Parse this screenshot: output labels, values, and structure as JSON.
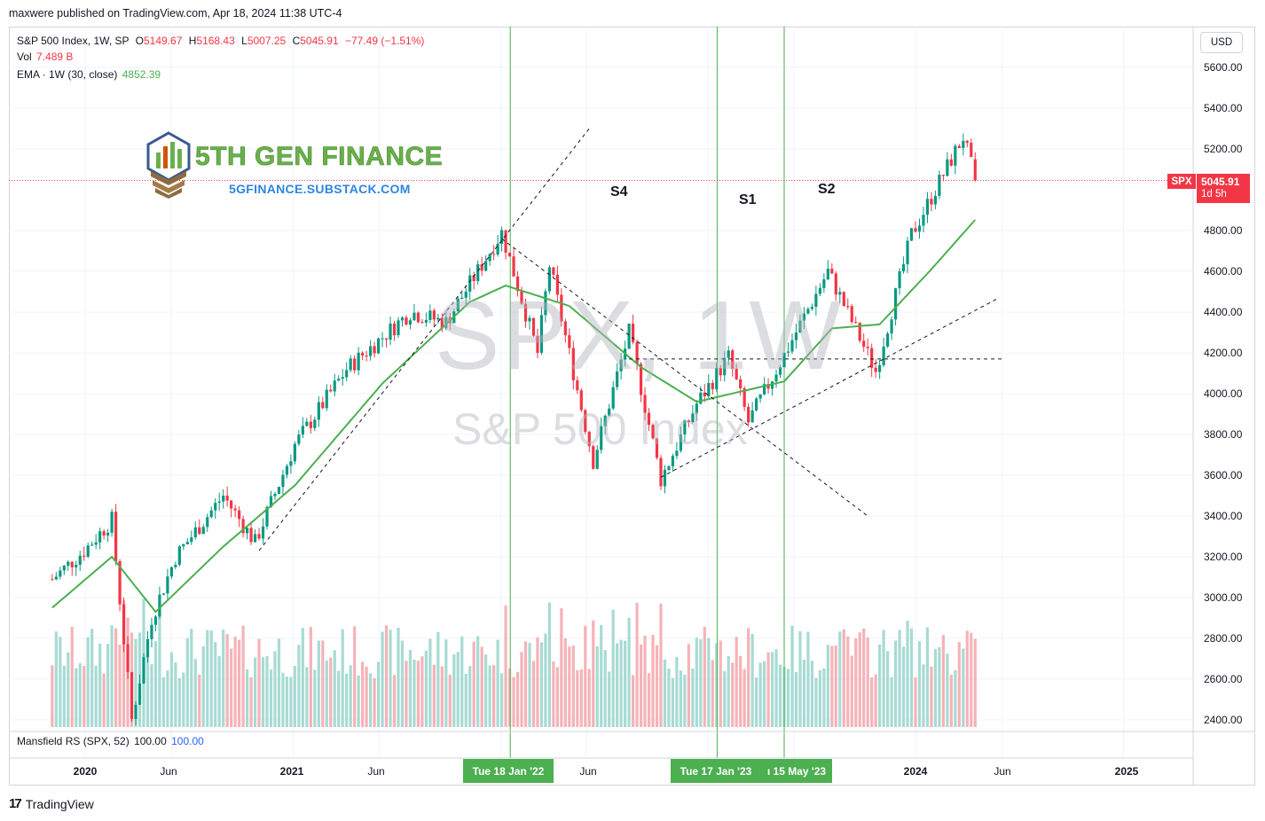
{
  "header": {
    "published": "maxwere published on TradingView.com, Apr 18, 2024 11:38 UTC-4"
  },
  "legend": {
    "symbol": "S&P 500 Index, 1W, SP",
    "open_label": "O",
    "open": "5149.67",
    "high_label": "H",
    "high": "5168.43",
    "low_label": "L",
    "low": "5007.25",
    "close_label": "C",
    "close": "5045.91",
    "change": "−77.49 (−1.51%)",
    "vol_label": "Vol",
    "vol": "7.489 B",
    "ema_label": "EMA · 1W (30, close)",
    "ema": "4852.39",
    "rs_label": "Mansfield RS (SPX, 52)",
    "rs_a": "100.00",
    "rs_b": "100.00"
  },
  "currency": "USD",
  "price_tag": {
    "symbol": "SPX",
    "price": "5045.91",
    "countdown": "1d 5h"
  },
  "watermark": {
    "ticker": "SPX, 1W",
    "name": "S&P 500 Index"
  },
  "annotations": [
    "S4",
    "S1",
    "S2"
  ],
  "logo": {
    "title": "5TH GEN FINANCE",
    "url": "5GFINANCE.SUBSTACK.COM"
  },
  "x_axis": {
    "labels": [
      "2020",
      "Jun",
      "2021",
      "Jun",
      "Jun",
      "2024",
      "Jun",
      "2025"
    ],
    "highlighted": [
      "Tue 18 Jan '22",
      "Tue 17 Jan '23",
      "ı 15 May '23"
    ]
  },
  "branding": "TradingView",
  "chart_data": {
    "type": "candlestick",
    "interval": "1W",
    "y_axis": {
      "ticks": [
        2400,
        2600,
        2800,
        3000,
        3200,
        3400,
        3600,
        3800,
        4000,
        4200,
        4400,
        4600,
        4800,
        5000,
        5200,
        5400,
        5600
      ],
      "range": [
        2380,
        5660
      ]
    },
    "price_path": [
      [
        "2019-11-04",
        3090
      ],
      [
        "2019-12-30",
        3230
      ],
      [
        "2020-02-17",
        3380
      ],
      [
        "2020-03-23",
        2400
      ],
      [
        "2020-04-27",
        2900
      ],
      [
        "2020-06-08",
        3200
      ],
      [
        "2020-08-31",
        3500
      ],
      [
        "2020-10-26",
        3270
      ],
      [
        "2021-01-04",
        3750
      ],
      [
        "2021-04-05",
        4120
      ],
      [
        "2021-07-26",
        4400
      ],
      [
        "2021-09-27",
        4350
      ],
      [
        "2022-01-03",
        4790
      ],
      [
        "2022-03-07",
        4200
      ],
      [
        "2022-03-28",
        4630
      ],
      [
        "2022-06-13",
        3670
      ],
      [
        "2022-08-15",
        4300
      ],
      [
        "2022-10-10",
        3580
      ],
      [
        "2022-12-12",
        3950
      ],
      [
        "2023-02-06",
        4180
      ],
      [
        "2023-03-13",
        3860
      ],
      [
        "2023-05-15",
        4190
      ],
      [
        "2023-07-31",
        4600
      ],
      [
        "2023-10-23",
        4110
      ],
      [
        "2023-12-25",
        4780
      ],
      [
        "2024-03-25",
        5260
      ],
      [
        "2024-04-15",
        5045.91
      ]
    ],
    "ema30_path": [
      [
        "2019-11-04",
        2950
      ],
      [
        "2020-02-17",
        3200
      ],
      [
        "2020-05-04",
        2930
      ],
      [
        "2020-08-31",
        3250
      ],
      [
        "2021-01-04",
        3550
      ],
      [
        "2021-06-07",
        4050
      ],
      [
        "2021-11-08",
        4450
      ],
      [
        "2022-01-10",
        4530
      ],
      [
        "2022-05-02",
        4430
      ],
      [
        "2022-09-05",
        4130
      ],
      [
        "2022-12-12",
        3960
      ],
      [
        "2023-05-15",
        4060
      ],
      [
        "2023-08-07",
        4320
      ],
      [
        "2023-10-30",
        4340
      ],
      [
        "2024-01-29",
        4610
      ],
      [
        "2024-04-15",
        4852.39
      ]
    ],
    "volume_bars": 235,
    "vertical_markers": [
      "2022-01-18",
      "2023-01-17",
      "2023-05-15"
    ],
    "trendlines": [
      {
        "from": [
          "2020-11-02",
          3230
        ],
        "to": [
          "2022-06-06",
          5300
        ],
        "style": "dashed"
      },
      {
        "from": [
          "2022-01-03",
          4760
        ],
        "to": [
          "2023-10-09",
          3400
        ],
        "style": "dashed"
      },
      {
        "from": [
          "2022-10-10",
          3590
        ],
        "to": [
          "2024-05-27",
          4470
        ],
        "style": "dashed"
      },
      {
        "from": [
          "2022-08-15",
          4170
        ],
        "to": [
          "2024-06-03",
          4170
        ],
        "style": "dashed"
      }
    ],
    "last_price": 5045.91
  }
}
